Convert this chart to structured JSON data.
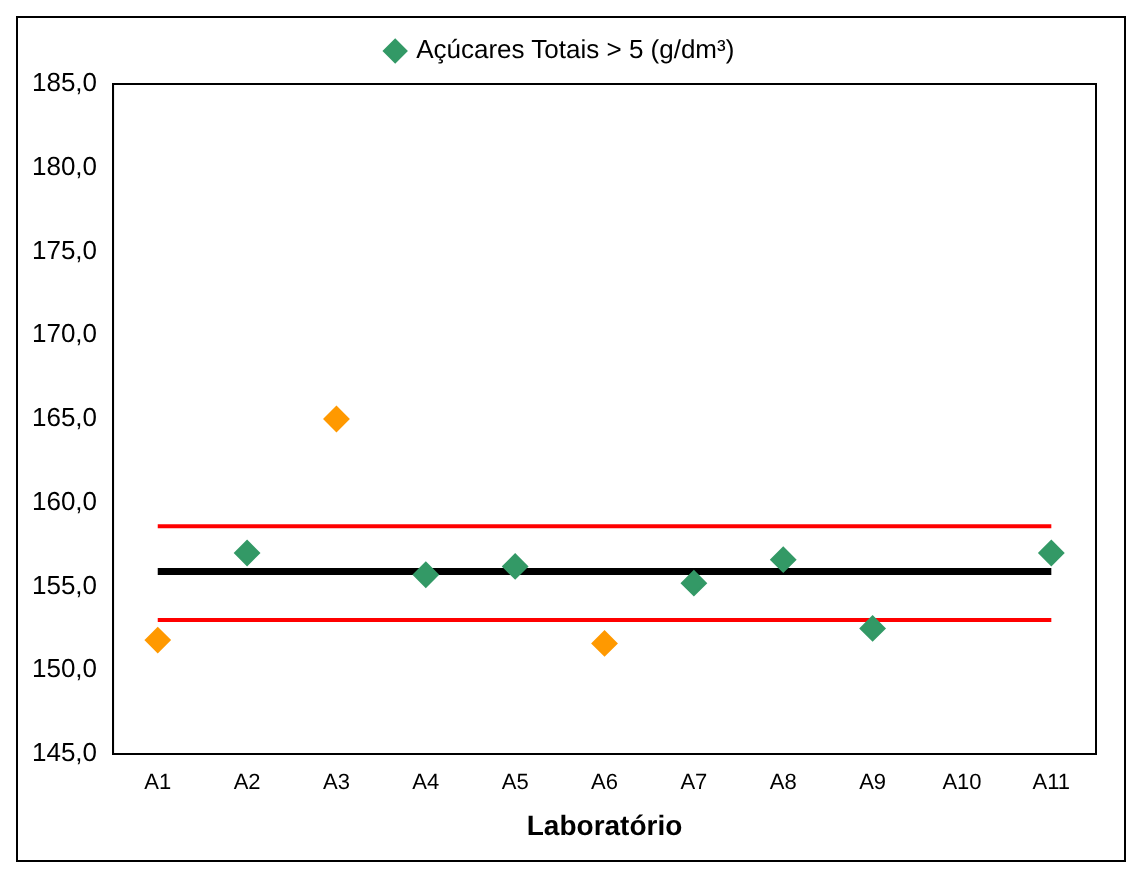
{
  "chart_data": {
    "type": "scatter",
    "xlabel": "Laboratório",
    "categories": [
      "A1",
      "A2",
      "A3",
      "A4",
      "A5",
      "A6",
      "A7",
      "A8",
      "A9",
      "A10",
      "A11"
    ],
    "series": [
      {
        "name": "Açúcares Totais > 5 (g/dm³)",
        "color": "#339966",
        "colors": [
          "#ff9900",
          "#339966",
          "#ff9900",
          "#339966",
          "#339966",
          "#ff9900",
          "#339966",
          "#339966",
          "#339966",
          "#339966",
          "#339966"
        ],
        "values": [
          151.8,
          157.0,
          165.0,
          155.7,
          156.2,
          151.6,
          155.2,
          156.6,
          152.5,
          null,
          157.0
        ]
      }
    ],
    "ylim": [
      145,
      185
    ],
    "yticks": [
      {
        "value": 145,
        "label": "145,0"
      },
      {
        "value": 150,
        "label": "150,0"
      },
      {
        "value": 155,
        "label": "155,0"
      },
      {
        "value": 160,
        "label": "160,0"
      },
      {
        "value": 165,
        "label": "165,0"
      },
      {
        "value": 170,
        "label": "170,0"
      },
      {
        "value": 175,
        "label": "175,0"
      },
      {
        "value": 180,
        "label": "180,0"
      },
      {
        "value": 185,
        "label": "185,0"
      }
    ],
    "ref_lines": [
      {
        "axis": "y",
        "value": 155.9,
        "color": "#000000"
      },
      {
        "axis": "y",
        "value": 158.6,
        "color": "#ff0000"
      },
      {
        "axis": "y",
        "value": 153.0,
        "color": "#ff0000"
      }
    ],
    "grid": false,
    "legend": "top",
    "marker": "diamond"
  }
}
